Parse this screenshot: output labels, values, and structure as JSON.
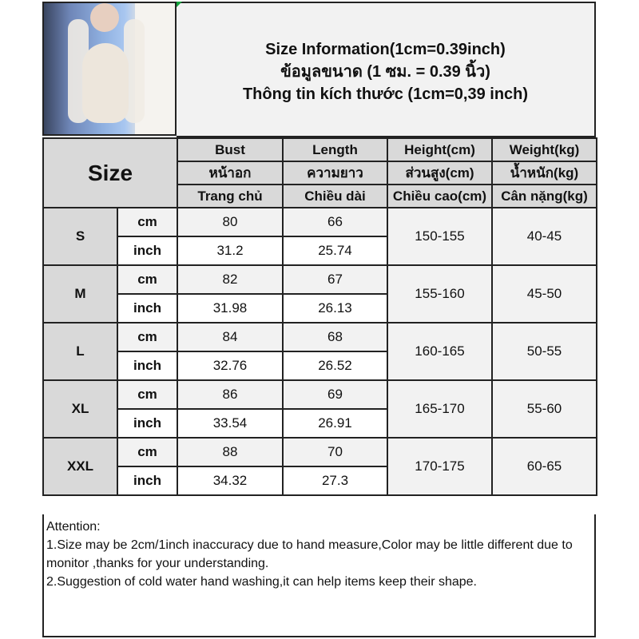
{
  "title": {
    "lines": [
      "Size Information(1cm=0.39inch)",
      "ข้อมูลขนาด (1 ซม. = 0.39 นิ้ว)",
      "Thông tin kích thước (1cm=0,39 inch)"
    ]
  },
  "table": {
    "size_header": "Size",
    "columns": [
      {
        "en": "Bust",
        "th": "หน้าอก",
        "vi": "Trang chủ"
      },
      {
        "en": "Length",
        "th": "ความยาว",
        "vi": "Chiều dài"
      },
      {
        "en": "Height(cm)",
        "th": "ส่วนสูง(cm)",
        "vi": "Chiều cao(cm)"
      },
      {
        "en": "Weight(kg)",
        "th": "น้ำหนัก(kg)",
        "vi": "Cân nặng(kg)"
      }
    ],
    "unit_cm": "cm",
    "unit_inch": "inch",
    "rows": [
      {
        "size": "S",
        "bust_cm": "80",
        "length_cm": "66",
        "bust_inch": "31.2",
        "length_inch": "25.74",
        "height": "150-155",
        "weight": "40-45"
      },
      {
        "size": "M",
        "bust_cm": "82",
        "length_cm": "67",
        "bust_inch": "31.98",
        "length_inch": "26.13",
        "height": "155-160",
        "weight": "45-50"
      },
      {
        "size": "L",
        "bust_cm": "84",
        "length_cm": "68",
        "bust_inch": "32.76",
        "length_inch": "26.52",
        "height": "160-165",
        "weight": "50-55"
      },
      {
        "size": "XL",
        "bust_cm": "86",
        "length_cm": "69",
        "bust_inch": "33.54",
        "length_inch": "26.91",
        "height": "165-170",
        "weight": "55-60"
      },
      {
        "size": "XXL",
        "bust_cm": "88",
        "length_cm": "70",
        "bust_inch": "34.32",
        "length_inch": "27.3",
        "height": "170-175",
        "weight": "60-65"
      }
    ]
  },
  "notes": [
    "Attention:",
    "1.Size may be 2cm/1inch inaccuracy due to hand measure,Color may be little different due to monitor ,thanks for your understanding.",
    "2.Suggestion of cold water hand washing,it can help items keep their shape."
  ]
}
